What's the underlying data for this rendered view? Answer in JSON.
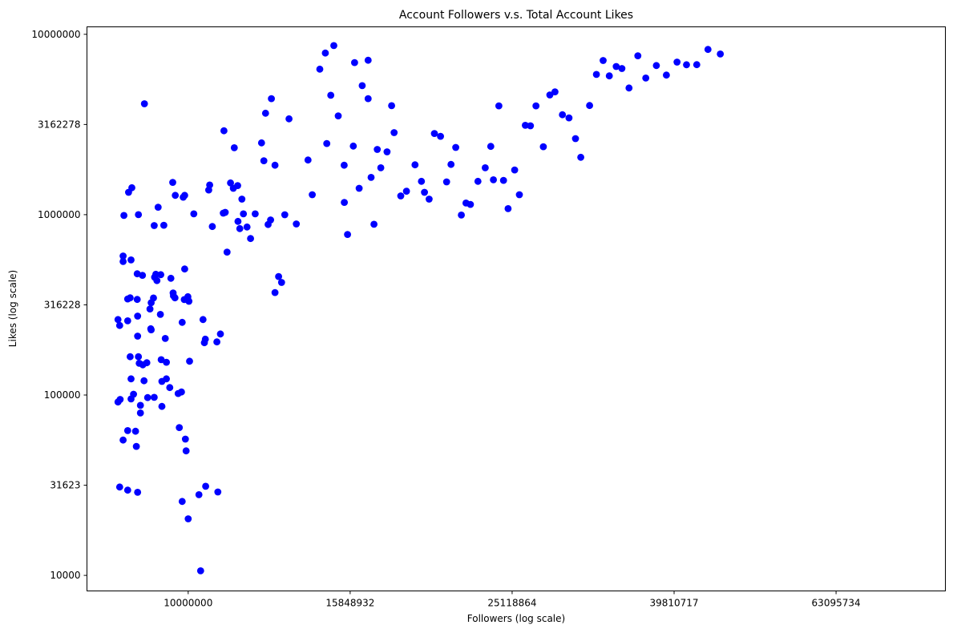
{
  "chart_data": {
    "type": "scatter",
    "title": "Account Followers v.s. Total Account Likes",
    "xlabel": "Followers (log scale)",
    "ylabel": "Likes (log scale)",
    "x_scale": "log",
    "y_scale": "log",
    "xlim": [
      7498942,
      86099902
    ],
    "ylim": [
      8221188,
      10746185
    ],
    "x_ticks": [
      10000000,
      15848932,
      25118864,
      39810717,
      63095734
    ],
    "x_tick_labels": [
      "10000000",
      "15848932",
      "25118864",
      "39810717",
      "63095734"
    ],
    "y_ticks": [
      10000,
      31623,
      100000,
      316228,
      1000000,
      3162278,
      10000000
    ],
    "y_tick_labels": [
      "10000",
      "31623",
      "100000",
      "316228",
      "1000000",
      "3162278",
      "10000000"
    ],
    "ylim_data": [
      8200,
      11000000
    ],
    "marker_color": "#0000ff",
    "grid": false,
    "legend": "none",
    "points": [
      [
        8230000,
        30900
      ],
      [
        8190000,
        91500
      ],
      [
        8240000,
        94500
      ],
      [
        8190000,
        262000
      ],
      [
        8230000,
        243000
      ],
      [
        8330000,
        990000
      ],
      [
        8310000,
        590000
      ],
      [
        8310000,
        550000
      ],
      [
        8310000,
        56300
      ],
      [
        8440000,
        1330000
      ],
      [
        8520000,
        1410000
      ],
      [
        8500000,
        561000
      ],
      [
        8480000,
        346000
      ],
      [
        8420000,
        341000
      ],
      [
        8420000,
        258000
      ],
      [
        8480000,
        163000
      ],
      [
        8500000,
        123000
      ],
      [
        8500000,
        95100
      ],
      [
        8420000,
        63500
      ],
      [
        8420000,
        29700
      ],
      [
        8630000,
        51900
      ],
      [
        8610000,
        63000
      ],
      [
        8560000,
        101000
      ],
      [
        8660000,
        28900
      ],
      [
        8680000,
        1000000
      ],
      [
        8650000,
        470000
      ],
      [
        8650000,
        339000
      ],
      [
        8660000,
        274000
      ],
      [
        8660000,
        212000
      ],
      [
        8680000,
        163000
      ],
      [
        8700000,
        150000
      ],
      [
        8730000,
        79500
      ],
      [
        8730000,
        87600
      ],
      [
        8780000,
        461000
      ],
      [
        8790000,
        147000
      ],
      [
        8830000,
        4120000
      ],
      [
        8820000,
        120000
      ],
      [
        8890000,
        151000
      ],
      [
        8910000,
        96800
      ],
      [
        8970000,
        300000
      ],
      [
        8990000,
        233000
      ],
      [
        9000000,
        230000
      ],
      [
        9000000,
        325000
      ],
      [
        9060000,
        345000
      ],
      [
        9080000,
        870000
      ],
      [
        9120000,
        467000
      ],
      [
        9090000,
        450000
      ],
      [
        9080000,
        97100
      ],
      [
        9150000,
        431000
      ],
      [
        9180000,
        1100000
      ],
      [
        9240000,
        280000
      ],
      [
        9330000,
        874000
      ],
      [
        9250000,
        465000
      ],
      [
        9260000,
        157000
      ],
      [
        9280000,
        119000
      ],
      [
        9280000,
        86500
      ],
      [
        9370000,
        206000
      ],
      [
        9400000,
        152000
      ],
      [
        9400000,
        123000
      ],
      [
        9490000,
        110000
      ],
      [
        9570000,
        1510000
      ],
      [
        9640000,
        1280000
      ],
      [
        9520000,
        444000
      ],
      [
        9580000,
        368000
      ],
      [
        9590000,
        355000
      ],
      [
        9630000,
        346000
      ],
      [
        9720000,
        102000
      ],
      [
        9750000,
        66000
      ],
      [
        9860000,
        1250000
      ],
      [
        9900000,
        1280000
      ],
      [
        9900000,
        500000
      ],
      [
        9990000,
        351000
      ],
      [
        9990000,
        339000
      ],
      [
        10020000,
        331000
      ],
      [
        9890000,
        338000
      ],
      [
        9830000,
        253000
      ],
      [
        9810000,
        104000
      ],
      [
        9830000,
        25700
      ],
      [
        9920000,
        57000
      ],
      [
        9940000,
        49000
      ],
      [
        10000000,
        20600
      ],
      [
        10040000,
        154000
      ],
      [
        10160000,
        1010000
      ],
      [
        10310000,
        28000
      ],
      [
        10360000,
        10600
      ],
      [
        10430000,
        262000
      ],
      [
        10470000,
        195000
      ],
      [
        10500000,
        204000
      ],
      [
        10510000,
        31200
      ],
      [
        10600000,
        1370000
      ],
      [
        10630000,
        1460000
      ],
      [
        10710000,
        860000
      ],
      [
        10850000,
        197000
      ],
      [
        10960000,
        218000
      ],
      [
        11070000,
        2920000
      ],
      [
        10880000,
        29000
      ],
      [
        11050000,
        1020000
      ],
      [
        11110000,
        1030000
      ],
      [
        11170000,
        620000
      ],
      [
        11280000,
        1500000
      ],
      [
        11400000,
        2350000
      ],
      [
        11370000,
        1400000
      ],
      [
        11510000,
        1450000
      ],
      [
        11520000,
        918000
      ],
      [
        11580000,
        837000
      ],
      [
        11650000,
        1220000
      ],
      [
        11700000,
        1010000
      ],
      [
        11820000,
        854000
      ],
      [
        11940000,
        737000
      ],
      [
        12100000,
        1010000
      ],
      [
        12320000,
        2500000
      ],
      [
        12460000,
        3650000
      ],
      [
        12400000,
        1990000
      ],
      [
        12670000,
        4400000
      ],
      [
        12800000,
        1880000
      ],
      [
        12550000,
        882000
      ],
      [
        12640000,
        935000
      ],
      [
        12930000,
        454000
      ],
      [
        13040000,
        421000
      ],
      [
        12800000,
        370000
      ],
      [
        13160000,
        999000
      ],
      [
        13320000,
        3400000
      ],
      [
        13600000,
        888000
      ],
      [
        14060000,
        2010000
      ],
      [
        14230000,
        1290000
      ],
      [
        14540000,
        6410000
      ],
      [
        14830000,
        2480000
      ],
      [
        15130000,
        8660000
      ],
      [
        15000000,
        4590000
      ],
      [
        14770000,
        7870000
      ],
      [
        15320000,
        3530000
      ],
      [
        15580000,
        1880000
      ],
      [
        15590000,
        1170000
      ],
      [
        15730000,
        777000
      ],
      [
        15990000,
        2400000
      ],
      [
        16050000,
        6970000
      ],
      [
        16400000,
        5190000
      ],
      [
        16680000,
        7180000
      ],
      [
        16260000,
        1400000
      ],
      [
        16680000,
        4400000
      ],
      [
        16820000,
        1610000
      ],
      [
        16960000,
        885000
      ],
      [
        17120000,
        2300000
      ],
      [
        17290000,
        1820000
      ],
      [
        17600000,
        2230000
      ],
      [
        17830000,
        4020000
      ],
      [
        17960000,
        2850000
      ],
      [
        18300000,
        1270000
      ],
      [
        18600000,
        1350000
      ],
      [
        19060000,
        1890000
      ],
      [
        19410000,
        1530000
      ],
      [
        19580000,
        1330000
      ],
      [
        19840000,
        1220000
      ],
      [
        20140000,
        2820000
      ],
      [
        20490000,
        2720000
      ],
      [
        20850000,
        1520000
      ],
      [
        21110000,
        1900000
      ],
      [
        21400000,
        2360000
      ],
      [
        21740000,
        995000
      ],
      [
        22030000,
        1160000
      ],
      [
        22310000,
        1140000
      ],
      [
        22790000,
        1530000
      ],
      [
        23270000,
        1820000
      ],
      [
        23640000,
        2390000
      ],
      [
        23820000,
        1560000
      ],
      [
        24190000,
        4010000
      ],
      [
        24510000,
        1550000
      ],
      [
        24830000,
        1080000
      ],
      [
        25300000,
        1770000
      ],
      [
        25640000,
        1290000
      ],
      [
        26080000,
        3130000
      ],
      [
        26460000,
        3110000
      ],
      [
        26880000,
        4010000
      ],
      [
        27450000,
        2380000
      ],
      [
        27960000,
        4610000
      ],
      [
        28370000,
        4800000
      ],
      [
        28980000,
        3580000
      ],
      [
        29530000,
        3440000
      ],
      [
        30080000,
        2640000
      ],
      [
        30530000,
        2080000
      ],
      [
        31310000,
        4030000
      ],
      [
        31920000,
        5990000
      ],
      [
        32540000,
        7160000
      ],
      [
        33110000,
        5880000
      ],
      [
        33770000,
        6630000
      ],
      [
        34320000,
        6460000
      ],
      [
        35020000,
        5040000
      ],
      [
        35910000,
        7600000
      ],
      [
        36730000,
        5720000
      ],
      [
        37850000,
        6710000
      ],
      [
        38950000,
        5940000
      ],
      [
        40150000,
        7010000
      ],
      [
        41240000,
        6780000
      ],
      [
        42460000,
        6790000
      ],
      [
        43840000,
        8240000
      ],
      [
        45400000,
        7780000
      ]
    ]
  }
}
